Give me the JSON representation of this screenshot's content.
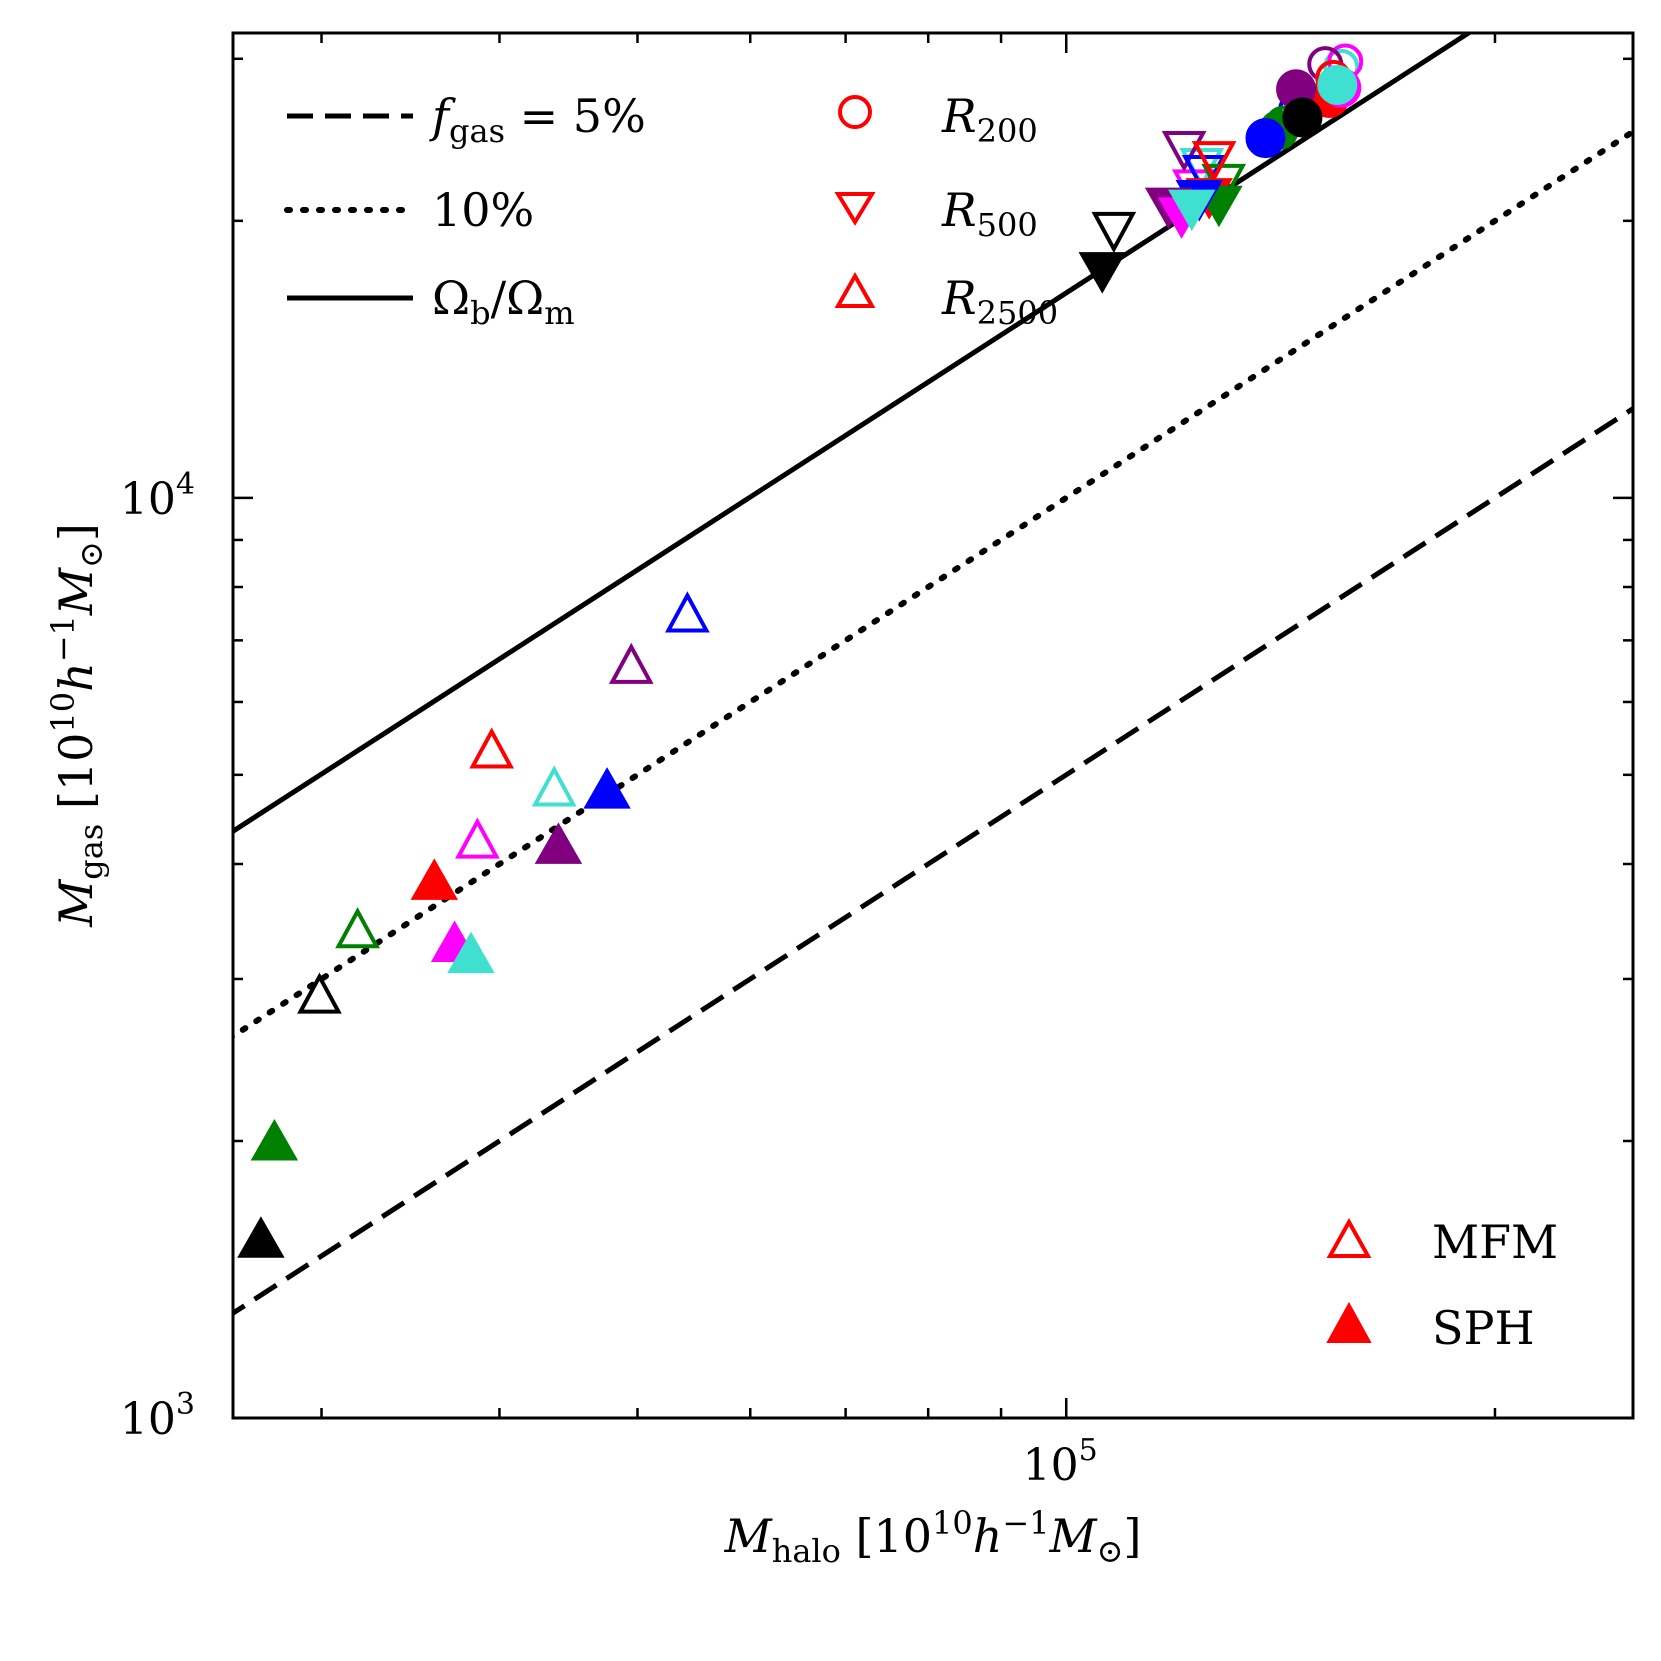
{
  "chart_data": {
    "type": "scatter",
    "xscale": "log",
    "yscale": "log",
    "xlim": [
      26000,
      250000
    ],
    "ylim": [
      1000,
      32000
    ],
    "xlabel": "M_halo [10^10 h^-1 M_sun]",
    "ylabel": "M_gas [10^10 h^-1 M_sun]",
    "x_major_ticks": [
      {
        "value": 100000,
        "base": "10",
        "exp": "5"
      }
    ],
    "y_major_ticks": [
      {
        "value": 1000,
        "base": "10",
        "exp": "3"
      },
      {
        "value": 10000,
        "base": "10",
        "exp": "4"
      }
    ],
    "x_minor_ticks": [
      30000,
      40000,
      50000,
      60000,
      70000,
      80000,
      90000,
      200000
    ],
    "y_minor_ticks": [
      2000,
      3000,
      4000,
      5000,
      6000,
      7000,
      8000,
      9000,
      20000,
      30000
    ],
    "reference_lines": [
      {
        "name": "f_gas = 5%",
        "fraction": 0.05,
        "style": "dashed"
      },
      {
        "name": "10%",
        "fraction": 0.1,
        "style": "dotted"
      },
      {
        "name": "Omega_b/Omega_m",
        "fraction": 0.167,
        "style": "solid"
      }
    ],
    "legend_lines": [
      {
        "label_main": "f",
        "label_sub": "gas",
        "label_rest": " = 5%",
        "style": "dashed"
      },
      {
        "label_main": "10%",
        "label_sub": "",
        "label_rest": "",
        "style": "dotted"
      },
      {
        "label_main": "Ω",
        "label_sub": "b",
        "label_rest": "/Ω",
        "label_sub2": "m",
        "style": "solid"
      }
    ],
    "legend_markers": [
      {
        "symbol": "circle",
        "label_main": "R",
        "label_sub": "200"
      },
      {
        "symbol": "triangle-down",
        "label_main": "R",
        "label_sub": "500"
      },
      {
        "symbol": "triangle-up",
        "label_main": "R",
        "label_sub": "2500"
      }
    ],
    "legend_methods": [
      {
        "symbol": "triangle-up",
        "fill": false,
        "label": "MFM"
      },
      {
        "symbol": "triangle-up",
        "fill": true,
        "label": "SPH"
      }
    ],
    "colors": {
      "red": "#ff0000",
      "green": "#008000",
      "blue": "#0000ff",
      "purple": "#800080",
      "magenta": "#ff00ff",
      "cyan": "#40e0d0",
      "black": "#000000"
    },
    "series": [
      {
        "name": "R2500 MFM red",
        "radius": "R2500",
        "method": "MFM",
        "color": "red",
        "symbol": "triangle-up",
        "x": 39500,
        "y": 5300
      },
      {
        "name": "R2500 MFM green",
        "radius": "R2500",
        "method": "MFM",
        "color": "green",
        "symbol": "triangle-up",
        "x": 31800,
        "y": 3380
      },
      {
        "name": "R2500 MFM blue",
        "radius": "R2500",
        "method": "MFM",
        "color": "blue",
        "symbol": "triangle-up",
        "x": 54200,
        "y": 7450
      },
      {
        "name": "R2500 MFM purple",
        "radius": "R2500",
        "method": "MFM",
        "color": "purple",
        "symbol": "triangle-up",
        "x": 49500,
        "y": 6550
      },
      {
        "name": "R2500 MFM magenta",
        "radius": "R2500",
        "method": "MFM",
        "color": "magenta",
        "symbol": "triangle-up",
        "x": 38600,
        "y": 4230
      },
      {
        "name": "R2500 MFM cyan",
        "radius": "R2500",
        "method": "MFM",
        "color": "cyan",
        "symbol": "triangle-up",
        "x": 43700,
        "y": 4820
      },
      {
        "name": "R2500 MFM black",
        "radius": "R2500",
        "method": "MFM",
        "color": "black",
        "symbol": "triangle-up",
        "x": 29900,
        "y": 2870
      },
      {
        "name": "R2500 SPH red",
        "radius": "R2500",
        "method": "SPH",
        "color": "red",
        "symbol": "triangle-up",
        "x": 36000,
        "y": 3820
      },
      {
        "name": "R2500 SPH green",
        "radius": "R2500",
        "method": "SPH",
        "color": "green",
        "symbol": "triangle-up",
        "x": 27800,
        "y": 1990
      },
      {
        "name": "R2500 SPH blue",
        "radius": "R2500",
        "method": "SPH",
        "color": "blue",
        "symbol": "triangle-up",
        "x": 47600,
        "y": 4800
      },
      {
        "name": "R2500 SPH purple",
        "radius": "R2500",
        "method": "SPH",
        "color": "purple",
        "symbol": "triangle-up",
        "x": 44000,
        "y": 4180
      },
      {
        "name": "R2500 SPH magenta",
        "radius": "R2500",
        "method": "SPH",
        "color": "magenta",
        "symbol": "triangle-up",
        "x": 37200,
        "y": 3270
      },
      {
        "name": "R2500 SPH cyan",
        "radius": "R2500",
        "method": "SPH",
        "color": "cyan",
        "symbol": "triangle-up",
        "x": 38200,
        "y": 3180
      },
      {
        "name": "R2500 SPH black",
        "radius": "R2500",
        "method": "SPH",
        "color": "black",
        "symbol": "triangle-up",
        "x": 27200,
        "y": 1560
      },
      {
        "name": "R500 MFM red",
        "radius": "R500",
        "method": "MFM",
        "color": "red",
        "symbol": "triangle-down",
        "x": 127000,
        "y": 23400
      },
      {
        "name": "R500 MFM green",
        "radius": "R500",
        "method": "MFM",
        "color": "green",
        "symbol": "triangle-down",
        "x": 129000,
        "y": 22100
      },
      {
        "name": "R500 MFM blue",
        "radius": "R500",
        "method": "MFM",
        "color": "blue",
        "symbol": "triangle-down",
        "x": 125000,
        "y": 22600
      },
      {
        "name": "R500 MFM purple",
        "radius": "R500",
        "method": "MFM",
        "color": "purple",
        "symbol": "triangle-down",
        "x": 121000,
        "y": 24000
      },
      {
        "name": "R500 MFM magenta",
        "radius": "R500",
        "method": "MFM",
        "color": "magenta",
        "symbol": "triangle-down",
        "x": 123000,
        "y": 21800
      },
      {
        "name": "R500 MFM cyan",
        "radius": "R500",
        "method": "MFM",
        "color": "cyan",
        "symbol": "triangle-down",
        "x": 124500,
        "y": 23000
      },
      {
        "name": "R500 MFM black",
        "radius": "R500",
        "method": "MFM",
        "color": "black",
        "symbol": "triangle-down",
        "x": 108000,
        "y": 19600
      },
      {
        "name": "R500 SPH red",
        "radius": "R500",
        "method": "SPH",
        "color": "red",
        "symbol": "triangle-down",
        "x": 126000,
        "y": 21300
      },
      {
        "name": "R500 SPH green",
        "radius": "R500",
        "method": "SPH",
        "color": "green",
        "symbol": "triangle-down",
        "x": 128000,
        "y": 20900
      },
      {
        "name": "R500 SPH blue",
        "radius": "R500",
        "method": "SPH",
        "color": "blue",
        "symbol": "triangle-down",
        "x": 124000,
        "y": 21200
      },
      {
        "name": "R500 SPH purple",
        "radius": "R500",
        "method": "SPH",
        "color": "purple",
        "symbol": "triangle-down",
        "x": 118000,
        "y": 20800
      },
      {
        "name": "R500 SPH magenta",
        "radius": "R500",
        "method": "SPH",
        "color": "magenta",
        "symbol": "triangle-down",
        "x": 120500,
        "y": 20300
      },
      {
        "name": "R500 SPH cyan",
        "radius": "R500",
        "method": "SPH",
        "color": "cyan",
        "symbol": "triangle-down",
        "x": 122500,
        "y": 20700
      },
      {
        "name": "R500 SPH black",
        "radius": "R500",
        "method": "SPH",
        "color": "black",
        "symbol": "triangle-down",
        "x": 106000,
        "y": 17700
      },
      {
        "name": "R200 MFM red",
        "radius": "R200",
        "method": "MFM",
        "color": "red",
        "symbol": "circle",
        "x": 154000,
        "y": 28600
      },
      {
        "name": "R200 MFM green",
        "radius": "R200",
        "method": "MFM",
        "color": "green",
        "symbol": "circle",
        "x": 142000,
        "y": 25500
      },
      {
        "name": "R200 MFM blue",
        "radius": "R200",
        "method": "MFM",
        "color": "blue",
        "symbol": "circle",
        "x": 145000,
        "y": 26400
      },
      {
        "name": "R200 MFM purple",
        "radius": "R200",
        "method": "MFM",
        "color": "purple",
        "symbol": "circle",
        "x": 152000,
        "y": 29600
      },
      {
        "name": "R200 MFM magenta",
        "radius": "R200",
        "method": "MFM",
        "color": "magenta",
        "symbol": "circle",
        "x": 157000,
        "y": 29800
      },
      {
        "name": "R200 MFM cyan",
        "radius": "R200",
        "method": "MFM",
        "color": "cyan",
        "symbol": "circle",
        "x": 156000,
        "y": 29400
      },
      {
        "name": "R200 MFM black",
        "radius": "R200",
        "method": "MFM",
        "color": "black",
        "symbol": "circle",
        "x": 146000,
        "y": 27300
      },
      {
        "name": "R200 SPH red",
        "radius": "R200",
        "method": "SPH",
        "color": "red",
        "symbol": "circle",
        "x": 153000,
        "y": 27200
      },
      {
        "name": "R200 SPH green",
        "radius": "R200",
        "method": "SPH",
        "color": "green",
        "symbol": "circle",
        "x": 141000,
        "y": 25100
      },
      {
        "name": "R200 SPH blue",
        "radius": "R200",
        "method": "SPH",
        "color": "blue",
        "symbol": "circle",
        "x": 138000,
        "y": 24600
      },
      {
        "name": "R200 SPH purple",
        "radius": "R200",
        "method": "SPH",
        "color": "purple",
        "symbol": "circle",
        "x": 145000,
        "y": 27800
      },
      {
        "name": "R200 SPH magenta",
        "radius": "R200",
        "method": "SPH",
        "color": "magenta",
        "symbol": "circle",
        "x": 156000,
        "y": 27900
      },
      {
        "name": "R200 SPH cyan",
        "radius": "R200",
        "method": "SPH",
        "color": "cyan",
        "symbol": "circle",
        "x": 155000,
        "y": 28100
      },
      {
        "name": "R200 SPH black",
        "radius": "R200",
        "method": "SPH",
        "color": "black",
        "symbol": "circle",
        "x": 146500,
        "y": 25900
      }
    ]
  },
  "axis_labels": {
    "x_main": "M",
    "x_sub": "halo",
    "x_bracket_open": " [10",
    "x_exp1": "10",
    "x_h": "h",
    "x_exp2": "−1",
    "x_msun": "M",
    "x_sun_sub": "⊙",
    "x_bracket_close": "]",
    "y_main": "M",
    "y_sub": "gas",
    "y_bracket_open": " [10",
    "y_exp1": "10",
    "y_h": "h",
    "y_exp2": "−1",
    "y_msun": "M",
    "y_sun_sub": "⊙",
    "y_bracket_close": "]"
  }
}
